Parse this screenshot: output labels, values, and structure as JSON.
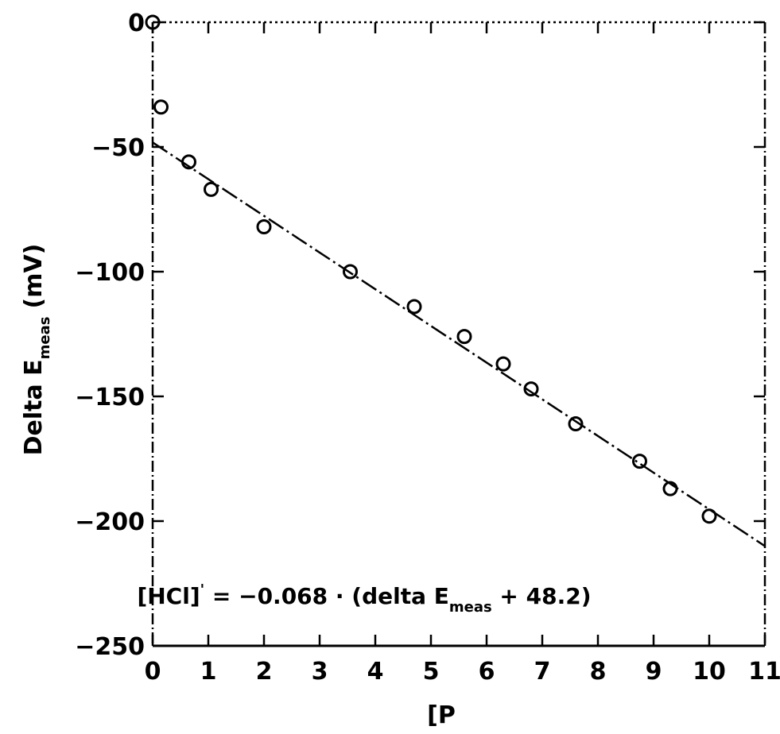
{
  "chart_data": {
    "type": "scatter",
    "title": "",
    "ylabel": "Delta E",
    "ylabel_subscript": "meas",
    "ylabel_unit": "(mV)",
    "xlabel": "[P",
    "xlim": [
      0,
      11
    ],
    "ylim": [
      -250,
      0
    ],
    "x_ticks": [
      0,
      1,
      2,
      3,
      4,
      5,
      6,
      7,
      8,
      9,
      10,
      11
    ],
    "y_ticks": [
      0,
      -50,
      -100,
      -150,
      -200,
      -250
    ],
    "grid": false,
    "legend": "none",
    "points": [
      {
        "x": 0.0,
        "y": 0
      },
      {
        "x": 0.15,
        "y": -34
      },
      {
        "x": 0.65,
        "y": -56
      },
      {
        "x": 1.05,
        "y": -67
      },
      {
        "x": 2.0,
        "y": -82
      },
      {
        "x": 3.55,
        "y": -100
      },
      {
        "x": 4.7,
        "y": -114
      },
      {
        "x": 5.6,
        "y": -126
      },
      {
        "x": 6.3,
        "y": -137
      },
      {
        "x": 6.8,
        "y": -147
      },
      {
        "x": 7.6,
        "y": -161
      },
      {
        "x": 8.75,
        "y": -176
      },
      {
        "x": 9.3,
        "y": -187
      },
      {
        "x": 10.0,
        "y": -198
      }
    ],
    "fit_line": {
      "x": [
        0,
        11
      ],
      "y": [
        -48.2,
        -210
      ]
    },
    "annotation": {
      "part1": "[HCl]",
      "superscript": "'",
      "part2": " = −0.068 · (delta E",
      "subscript": "meas",
      "part3": " + 48.2)",
      "at": {
        "x": 3.8,
        "y": -230
      }
    },
    "colors": {
      "ink": "#000000",
      "background": "#ffffff"
    }
  }
}
